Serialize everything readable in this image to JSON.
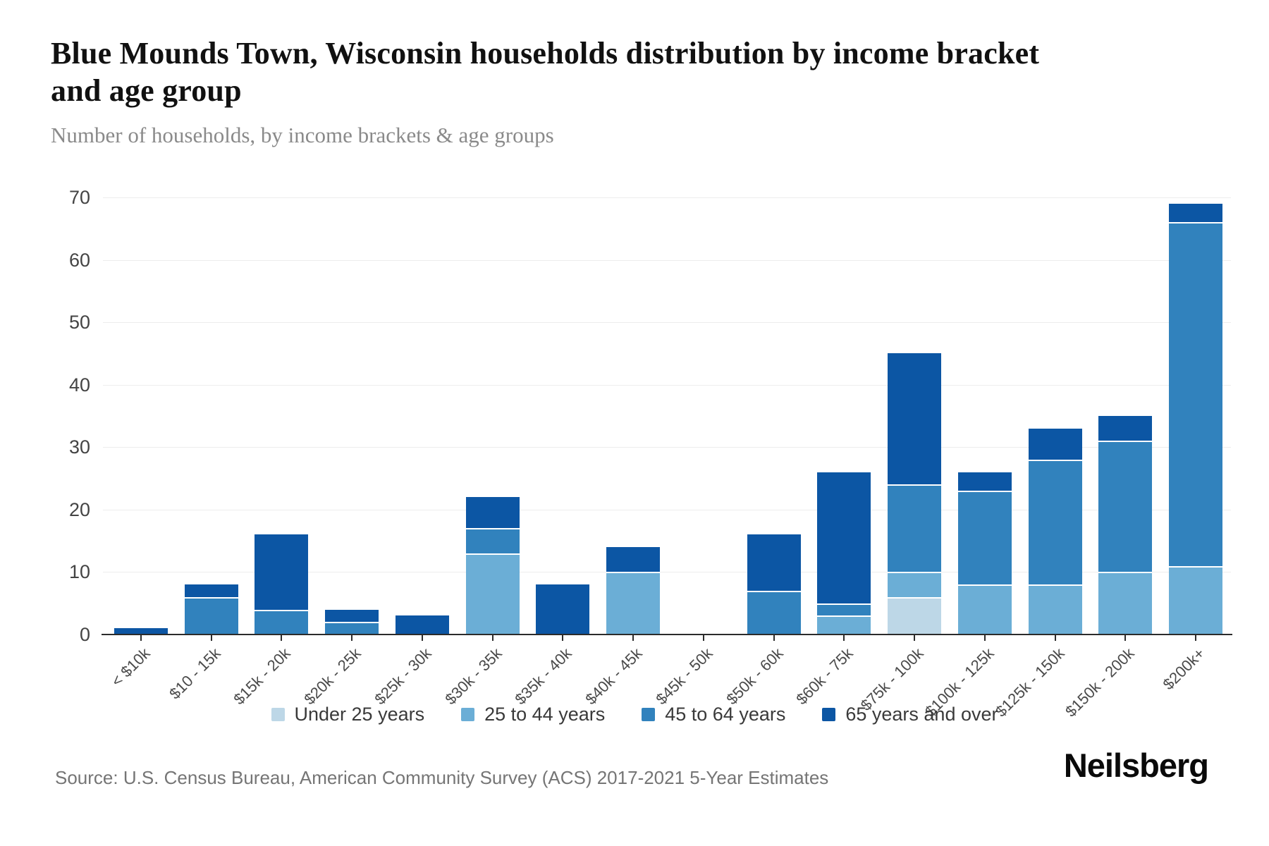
{
  "header": {
    "title": "Blue Mounds Town, Wisconsin households distribution by income bracket and age group",
    "subtitle": "Number of households, by income brackets & age groups"
  },
  "footer": {
    "source": "Source: U.S. Census Bureau, American Community Survey (ACS) 2017-2021 5-Year Estimates",
    "brand": "Neilsberg"
  },
  "colors": {
    "under_25": "#bdd7e7",
    "age_25_44": "#6baed6",
    "age_45_64": "#3182bd",
    "age_65_over": "#0c56a4",
    "gridline": "#ededed",
    "axis": "#2b2b2b",
    "y_tick_label": "#444444",
    "x_tick_label": "#4a4a4a",
    "legend_text": "#3a3a3a",
    "subtitle_text": "#8a8a8a",
    "source_text": "#757575"
  },
  "chart_data": {
    "type": "bar",
    "stacked": true,
    "title": "Blue Mounds Town, Wisconsin households distribution by income bracket and age group",
    "subtitle": "Number of households, by income brackets & age groups",
    "xlabel": "",
    "ylabel": "",
    "categories": [
      "< $10k",
      "$10 - 15k",
      "$15k - 20k",
      "$20k - 25k",
      "$25k - 30k",
      "$30k - 35k",
      "$35k - 40k",
      "$40k - 45k",
      "$45k - 50k",
      "$50k - 60k",
      "$60k - 75k",
      "$75k - 100k",
      "$100k - 125k",
      "$125k - 150k",
      "$150k - 200k",
      "$200k+"
    ],
    "series": [
      {
        "name": "Under 25 years",
        "color": "#bdd7e7",
        "values": [
          0,
          0,
          0,
          0,
          0,
          0,
          0,
          0,
          0,
          0,
          0,
          6,
          0,
          0,
          0,
          0
        ]
      },
      {
        "name": "25 to 44 years",
        "color": "#6baed6",
        "values": [
          0,
          0,
          0,
          0,
          0,
          13,
          0,
          10,
          0,
          0,
          3,
          4,
          8,
          8,
          10,
          11
        ]
      },
      {
        "name": "45 to 64 years",
        "color": "#3182bd",
        "values": [
          0,
          6,
          4,
          2,
          0,
          4,
          0,
          0,
          0,
          7,
          2,
          14,
          15,
          20,
          21,
          55
        ]
      },
      {
        "name": "65 years and over",
        "color": "#0c56a4",
        "values": [
          1,
          2,
          12,
          2,
          3,
          5,
          8,
          4,
          0,
          9,
          21,
          21,
          3,
          5,
          4,
          3
        ]
      }
    ],
    "totals": [
      1,
      8,
      16,
      4,
      3,
      22,
      8,
      14,
      0,
      16,
      26,
      45,
      26,
      33,
      35,
      69
    ],
    "ylim": [
      0,
      70
    ],
    "yticks": [
      0,
      10,
      20,
      30,
      40,
      50,
      60,
      70
    ],
    "grid": "horizontal",
    "legend_position": "bottom"
  }
}
